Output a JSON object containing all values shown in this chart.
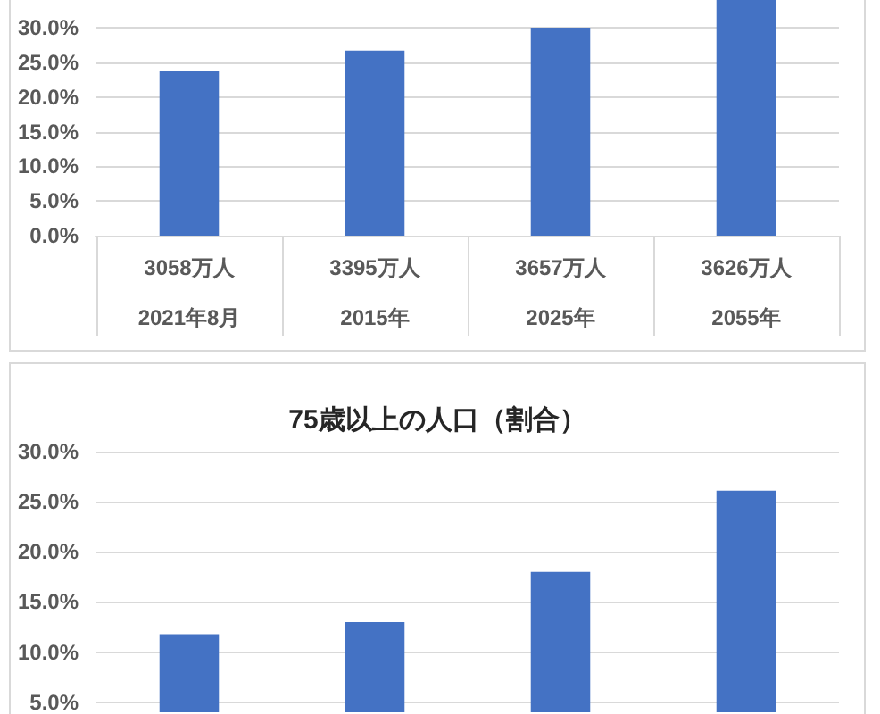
{
  "chart_data": [
    {
      "type": "bar",
      "categories": [
        "3058万人\n2021年8月",
        "3395万人\n2015年",
        "3657万人\n2025年",
        "3626万人\n2055年"
      ],
      "values": [
        23.8,
        26.7,
        30.0,
        34
      ],
      "color": "#4472c4",
      "ylim": [
        0,
        34
      ],
      "yticks": [
        {
          "value": 0,
          "label": "0.0%"
        },
        {
          "value": 5,
          "label": "5.0%"
        },
        {
          "value": 10,
          "label": "10.0%"
        },
        {
          "value": 15,
          "label": "15.0%"
        },
        {
          "value": 20,
          "label": "20.0%"
        },
        {
          "value": 25,
          "label": "25.0%"
        },
        {
          "value": 30,
          "label": "30.0%"
        }
      ],
      "grid": "y"
    },
    {
      "type": "bar",
      "title": "75歳以上の人口（割合）",
      "categories": [
        null,
        null,
        null,
        null
      ],
      "values": [
        11.8,
        13.0,
        18.0,
        26.1
      ],
      "color": "#4472c4",
      "ylim": [
        4,
        30
      ],
      "yticks": [
        {
          "value": 5,
          "label": "5.0%"
        },
        {
          "value": 10,
          "label": "10.0%"
        },
        {
          "value": 15,
          "label": "15.0%"
        },
        {
          "value": 20,
          "label": "20.0%"
        },
        {
          "value": 25,
          "label": "25.0%"
        },
        {
          "value": 30,
          "label": "30.0%"
        }
      ],
      "grid": "y",
      "tick_labels": "y"
    }
  ]
}
